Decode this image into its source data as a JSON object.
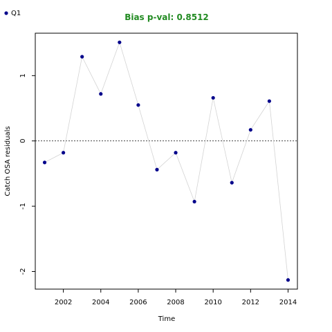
{
  "chart_data": {
    "type": "line",
    "title": "Bias p-val: 0.8512",
    "title_color": "#228B22",
    "xlabel": "Time",
    "ylabel": "Catch OSA residuals",
    "xlim": [
      2000.5,
      2014.5
    ],
    "ylim": [
      -2.27,
      1.65
    ],
    "x_ticks": [
      2002,
      2004,
      2006,
      2008,
      2010,
      2012,
      2014
    ],
    "y_ticks": [
      -2,
      -1,
      0,
      1
    ],
    "reference_line": 0,
    "legend_position": "top-left",
    "series": [
      {
        "name": "Q1",
        "color": "#00008B",
        "line_color": "#D3D3D3",
        "x": [
          2001,
          2002,
          2003,
          2004,
          2005,
          2006,
          2007,
          2008,
          2009,
          2010,
          2011,
          2012,
          2013,
          2014
        ],
        "y": [
          -0.33,
          -0.18,
          1.29,
          0.72,
          1.51,
          0.55,
          -0.44,
          -0.18,
          -0.93,
          0.66,
          -0.64,
          0.17,
          0.61,
          -2.13
        ]
      }
    ]
  }
}
